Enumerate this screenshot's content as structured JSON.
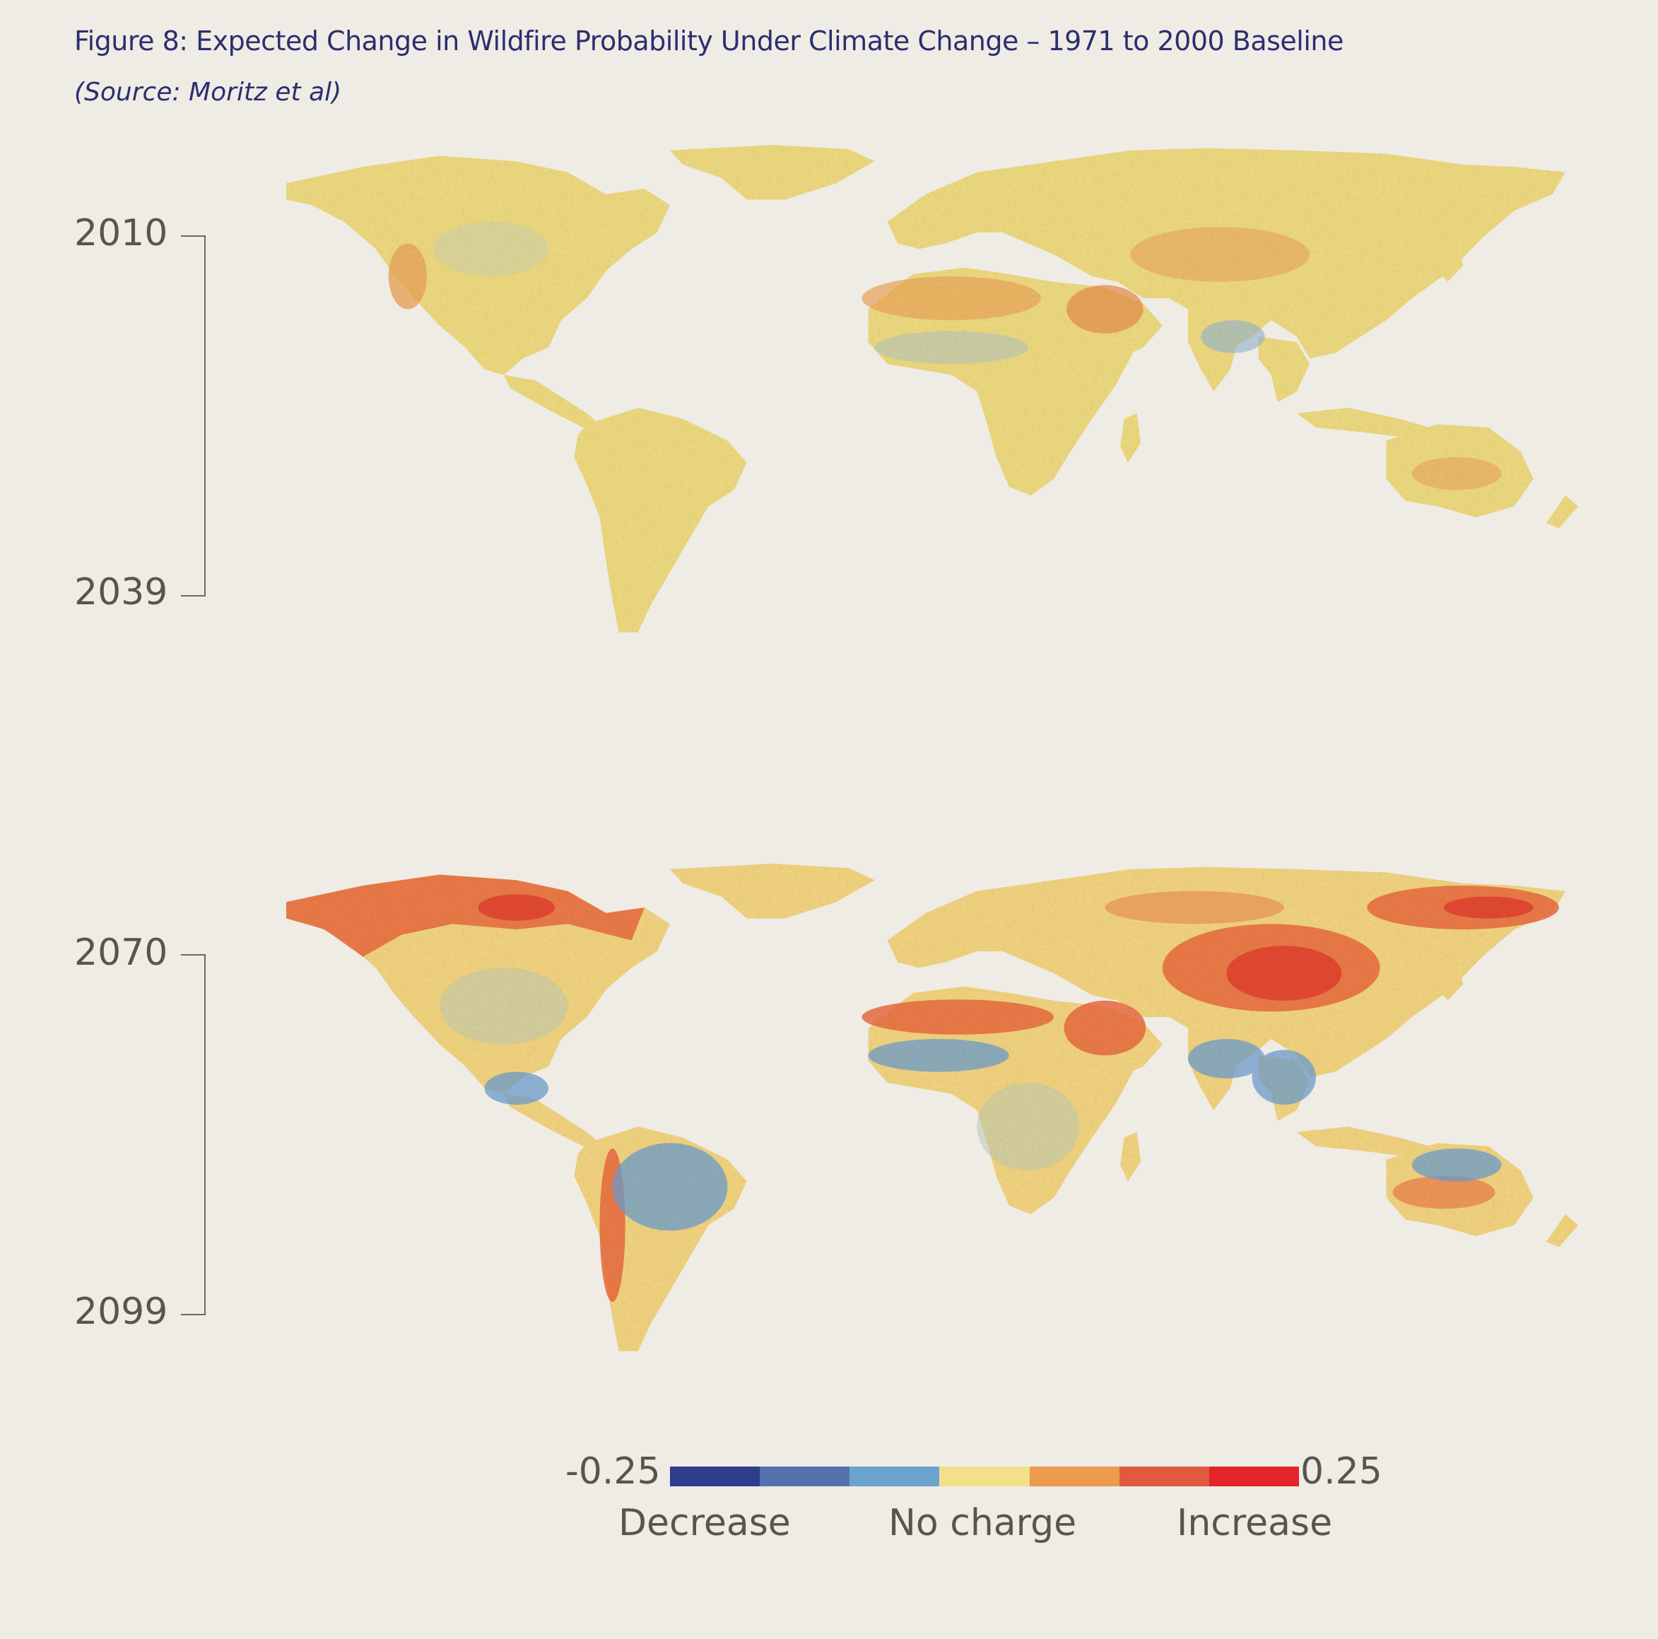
{
  "figure": {
    "title": "Figure 8: Expected Change in Wildfire Probability Under Climate Change – 1971 to 2000 Baseline",
    "source": "(Source: Moritz et al)"
  },
  "panels": [
    {
      "start_year": "2010",
      "end_year": "2039"
    },
    {
      "start_year": "2070",
      "end_year": "2099"
    }
  ],
  "legend": {
    "min_label": "-0.25",
    "max_label": "0.25",
    "category_labels": [
      "Decrease",
      "No charge",
      "Increase"
    ],
    "colors": [
      "#2e3d8c",
      "#5672ae",
      "#6ba3cf",
      "#f1e18a",
      "#ec9a4b",
      "#e05a3f",
      "#e3242b"
    ]
  },
  "colors": {
    "background": "#efece6",
    "title": "#2b2f6e",
    "axis_text": "#5a544e"
  }
}
